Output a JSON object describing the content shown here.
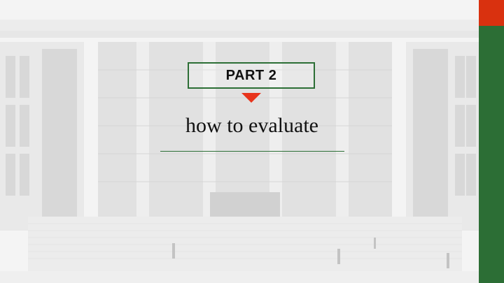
{
  "slide": {
    "part_label": "PART 2",
    "subtitle": "how to evaluate"
  },
  "colors": {
    "accent_green": "#2c6e35",
    "accent_red": "#d9310f",
    "arrow_red": "#e8341c"
  },
  "icons": {
    "indicator": "down-triangle-icon",
    "background": "building-photo"
  }
}
